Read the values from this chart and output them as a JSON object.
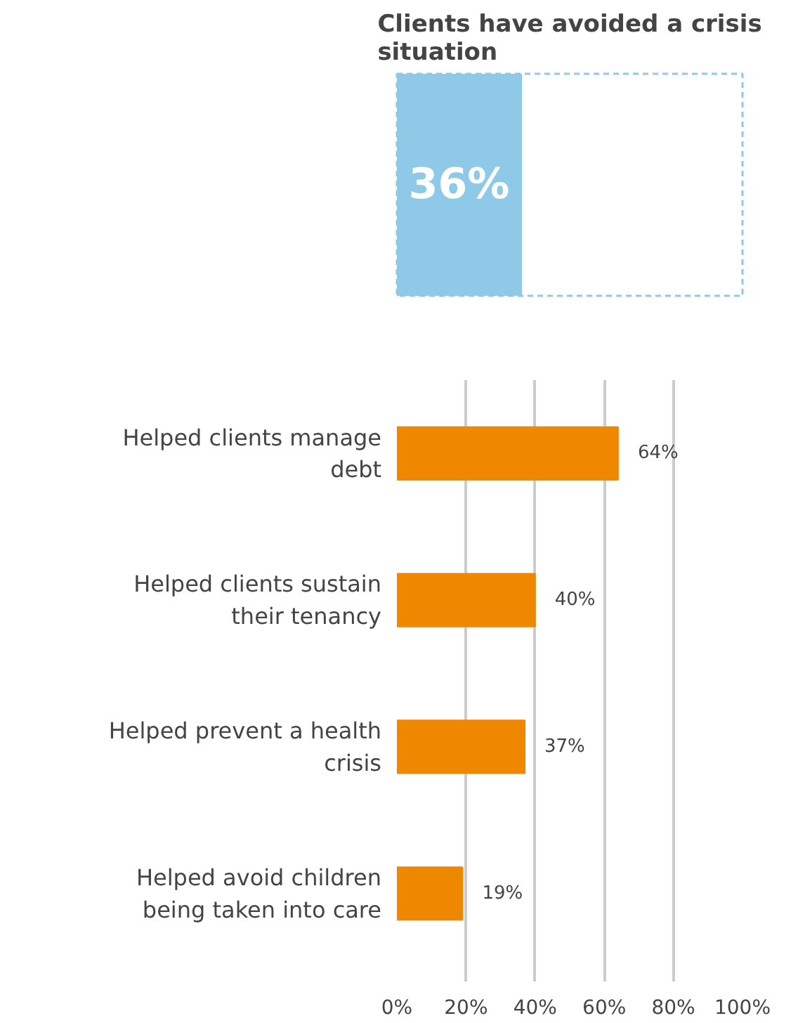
{
  "chart_data": [
    {
      "type": "bar",
      "orientation": "horizontal",
      "title": "Clients have avoided a crisis situation",
      "categories": [
        null
      ],
      "values": [
        36
      ],
      "value_labels": [
        "36%"
      ],
      "color": "#8ecae8",
      "xlim": [
        0,
        100
      ],
      "grid": false
    },
    {
      "type": "bar",
      "orientation": "horizontal",
      "categories": [
        "Helped clients manage debt",
        "Helped clients sustain their tenancy",
        "Helped prevent a health crisis",
        "Helped avoid children being taken into care"
      ],
      "values": [
        64,
        40,
        37,
        19
      ],
      "value_labels": [
        "64%",
        "40%",
        "37%",
        "19%"
      ],
      "color": "#ef8700",
      "xlim": [
        0,
        100
      ],
      "xticks": [
        {
          "value": 0,
          "label": "0%"
        },
        {
          "value": 20,
          "label": "20%"
        },
        {
          "value": 40,
          "label": "40%"
        },
        {
          "value": 60,
          "label": "60%"
        },
        {
          "value": 80,
          "label": "80%"
        },
        {
          "value": 100,
          "label": "100%"
        }
      ],
      "grid": "x"
    }
  ]
}
